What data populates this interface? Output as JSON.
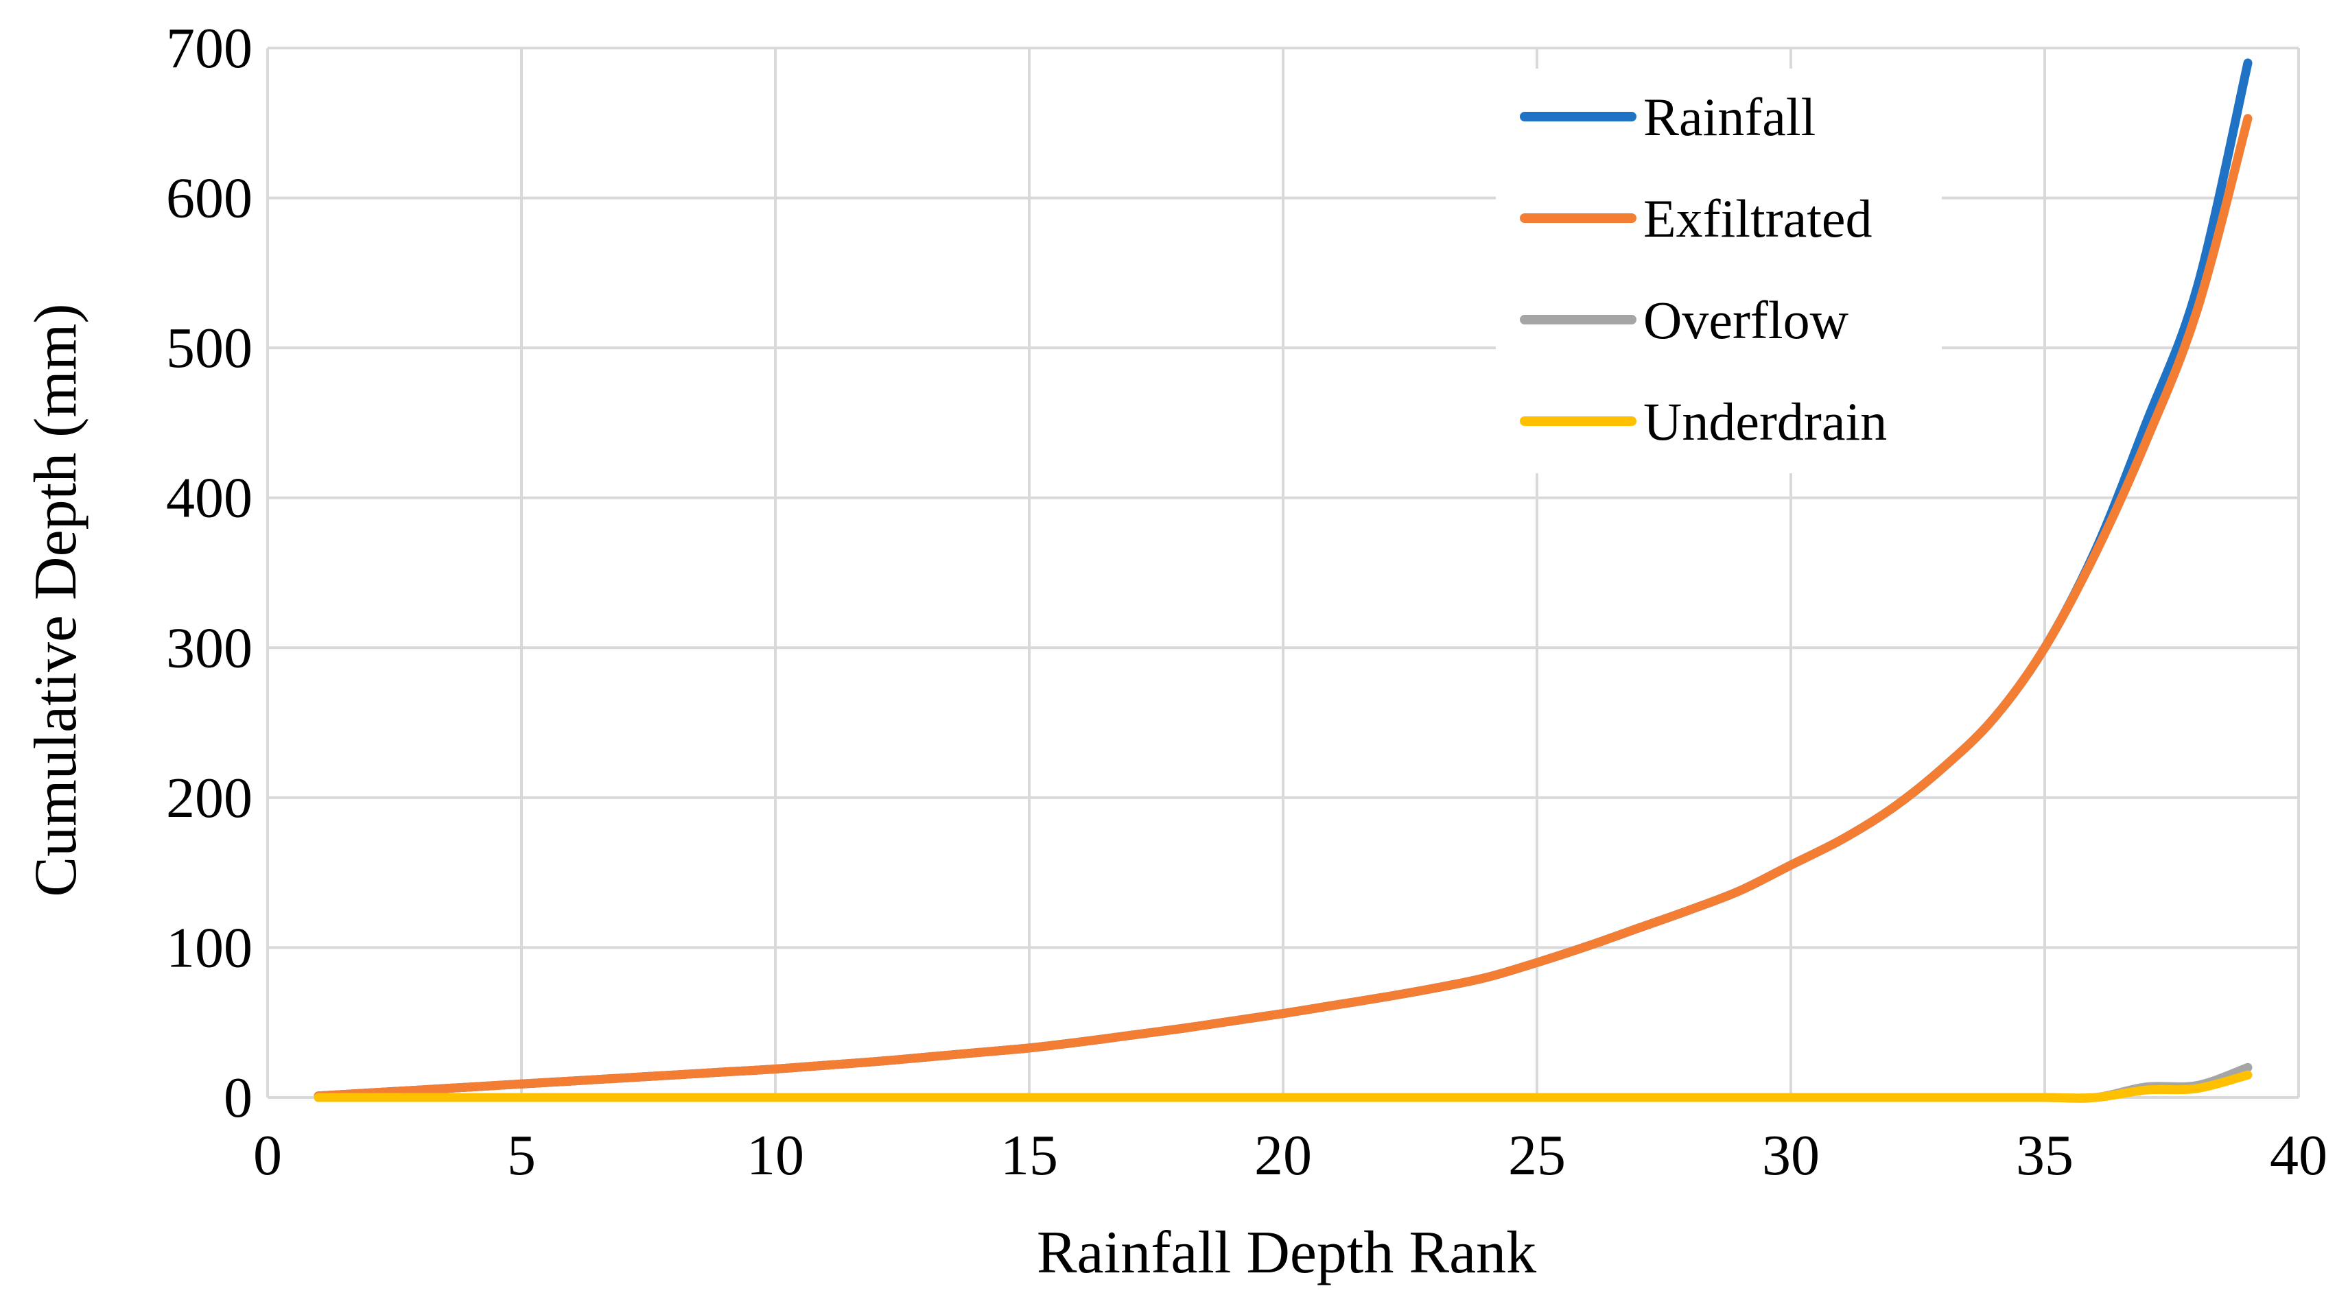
{
  "chart_data": {
    "type": "line",
    "title": "",
    "xlabel": "Rainfall Depth Rank",
    "ylabel": "Cumulative Depth (mm)",
    "xlim": [
      0,
      40
    ],
    "ylim": [
      0,
      700
    ],
    "xticks": [
      0,
      5,
      10,
      15,
      20,
      25,
      30,
      35,
      40
    ],
    "yticks": [
      0,
      100,
      200,
      300,
      400,
      500,
      600,
      700
    ],
    "grid": true,
    "legend_position": "top-right",
    "x": [
      1,
      2,
      3,
      4,
      5,
      6,
      7,
      8,
      9,
      10,
      11,
      12,
      13,
      14,
      15,
      16,
      17,
      18,
      19,
      20,
      21,
      22,
      23,
      24,
      25,
      26,
      27,
      28,
      29,
      30,
      31,
      32,
      33,
      34,
      35,
      36,
      37,
      38,
      39
    ],
    "series": [
      {
        "name": "Rainfall",
        "color": "#1f72c4",
        "values": [
          1,
          3,
          5,
          7,
          9,
          11,
          13,
          15,
          17,
          19,
          21.5,
          24,
          27,
          30,
          33,
          37,
          41.5,
          46,
          51,
          56,
          61.5,
          67,
          73,
          80,
          90,
          101,
          113,
          125,
          138,
          155,
          172,
          193,
          220,
          253,
          300,
          365,
          450,
          540,
          690
        ]
      },
      {
        "name": "Exfiltrated",
        "color": "#f47d34",
        "values": [
          1,
          3,
          5,
          7,
          9,
          11,
          13,
          15,
          17,
          19,
          21.5,
          24,
          27,
          30,
          33,
          37,
          41.5,
          46,
          51,
          56,
          61.5,
          67,
          73,
          80,
          90,
          101,
          113,
          125,
          138,
          155,
          172,
          193,
          220,
          253,
          300,
          363,
          438,
          525,
          653
        ]
      },
      {
        "name": "Overflow",
        "color": "#a5a5a5",
        "values": [
          0,
          0,
          0,
          0,
          0,
          0,
          0,
          0,
          0,
          0,
          0,
          0,
          0,
          0,
          0,
          0,
          0,
          0,
          0,
          0,
          0,
          0,
          0,
          0,
          0,
          0,
          0,
          0,
          0,
          0,
          0,
          0,
          0,
          0,
          0,
          0,
          7,
          8,
          20
        ]
      },
      {
        "name": "Underdrain",
        "color": "#ffc000",
        "values": [
          0,
          0,
          0,
          0,
          0,
          0,
          0,
          0,
          0,
          0,
          0,
          0,
          0,
          0,
          0,
          0,
          0,
          0,
          0,
          0,
          0,
          0,
          0,
          0,
          0,
          0,
          0,
          0,
          0,
          0,
          0,
          0,
          0,
          0,
          0,
          0,
          5,
          6,
          15
        ]
      }
    ]
  }
}
